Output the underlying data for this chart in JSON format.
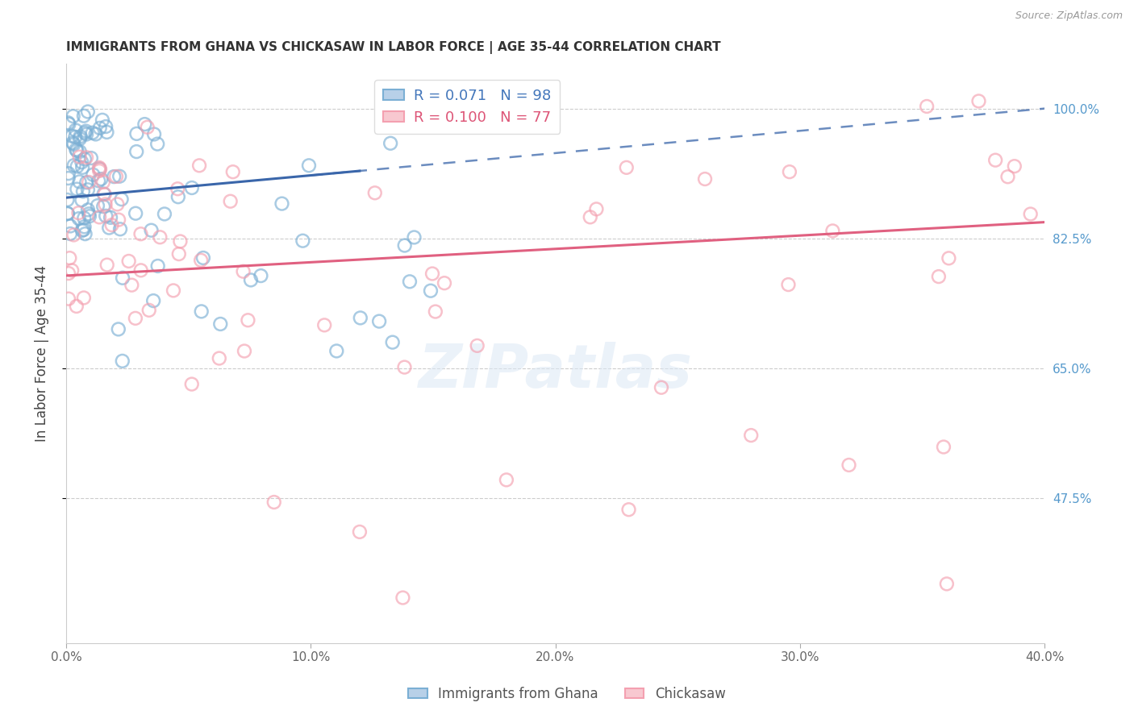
{
  "title": "IMMIGRANTS FROM GHANA VS CHICKASAW IN LABOR FORCE | AGE 35-44 CORRELATION CHART",
  "source": "Source: ZipAtlas.com",
  "ylabel": "In Labor Force | Age 35-44",
  "xmin": 0.0,
  "xmax": 0.4,
  "ymin": 0.28,
  "ymax": 1.06,
  "ytick_vals": [
    0.475,
    0.65,
    0.825,
    1.0
  ],
  "ytick_labels": [
    "47.5%",
    "65.0%",
    "82.5%",
    "100.0%"
  ],
  "xtick_vals": [
    0.0,
    0.1,
    0.2,
    0.3,
    0.4
  ],
  "xtick_labels": [
    "0.0%",
    "10.0%",
    "20.0%",
    "30.0%",
    "40.0%"
  ],
  "ghana_R": 0.071,
  "ghana_N": 98,
  "chickasaw_R": 0.1,
  "chickasaw_N": 77,
  "ghana_color": "#7bafd4",
  "chickasaw_color": "#f4a0b0",
  "ghana_trend_color": "#3a66aa",
  "chickasaw_trend_color": "#e06080",
  "background_color": "#ffffff",
  "grid_color": "#cccccc",
  "watermark": "ZIPatlas",
  "legend1_label": "R = 0.071   N = 98",
  "legend2_label": "R = 0.100   N = 77",
  "ghana_trend_intercept": 0.88,
  "ghana_trend_slope": 0.3,
  "chickasaw_trend_intercept": 0.775,
  "chickasaw_trend_slope": 0.18
}
